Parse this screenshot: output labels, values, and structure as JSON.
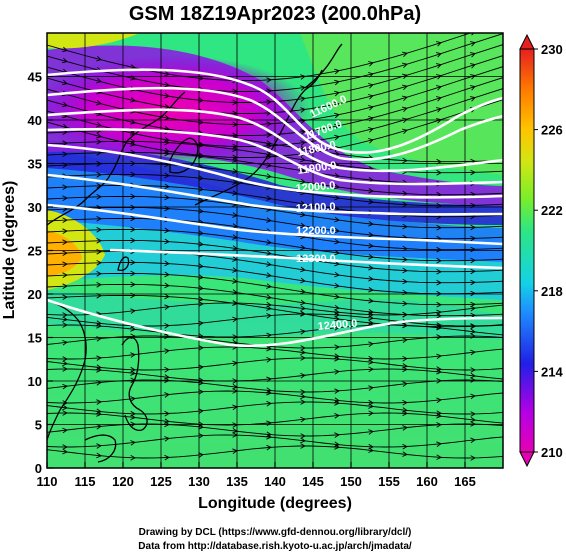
{
  "title": "GSM 18Z19Apr2023 (200.0hPa)",
  "x_axis": {
    "title": "Longitude (degrees)",
    "range": [
      110,
      170
    ],
    "ticks": [
      "110",
      "115",
      "120",
      "125",
      "130",
      "135",
      "140",
      "145",
      "150",
      "155",
      "160",
      "165"
    ],
    "tick_values": [
      110,
      115,
      120,
      125,
      130,
      135,
      140,
      145,
      150,
      155,
      160,
      165
    ]
  },
  "y_axis": {
    "title": "Latitude (degrees)",
    "range": [
      0,
      50
    ],
    "ticks": [
      "0",
      "5",
      "10",
      "15",
      "20",
      "25",
      "30",
      "35",
      "40",
      "45"
    ],
    "tick_values": [
      0,
      5,
      10,
      15,
      20,
      25,
      30,
      35,
      40,
      45
    ]
  },
  "colorbar": {
    "range": [
      210,
      230
    ],
    "labels": [
      "210",
      "214",
      "218",
      "222",
      "226",
      "230"
    ],
    "label_values": [
      210,
      214,
      218,
      222,
      226,
      230
    ],
    "colors": [
      "#e600b4",
      "#b400e6",
      "#2020e6",
      "#1e90ff",
      "#14d2e6",
      "#2ee682",
      "#7aee2a",
      "#d2e614",
      "#ffc400",
      "#ff7a00",
      "#e62020"
    ]
  },
  "contours": [
    {
      "label": "11600.0"
    },
    {
      "label": "11700.0"
    },
    {
      "label": "11800.0"
    },
    {
      "label": "11900.0"
    },
    {
      "label": "12000.0"
    },
    {
      "label": "12100.0"
    },
    {
      "label": "12200.0"
    },
    {
      "label": "12300.0"
    },
    {
      "label": "12400.0"
    }
  ],
  "credits": {
    "line1": "Drawing by DCL (https://www.gfd-dennou.org/library/dcl/)",
    "line2": "Data from http://database.rish.kyoto-u.ac.jp/arch/jmadata/"
  }
}
